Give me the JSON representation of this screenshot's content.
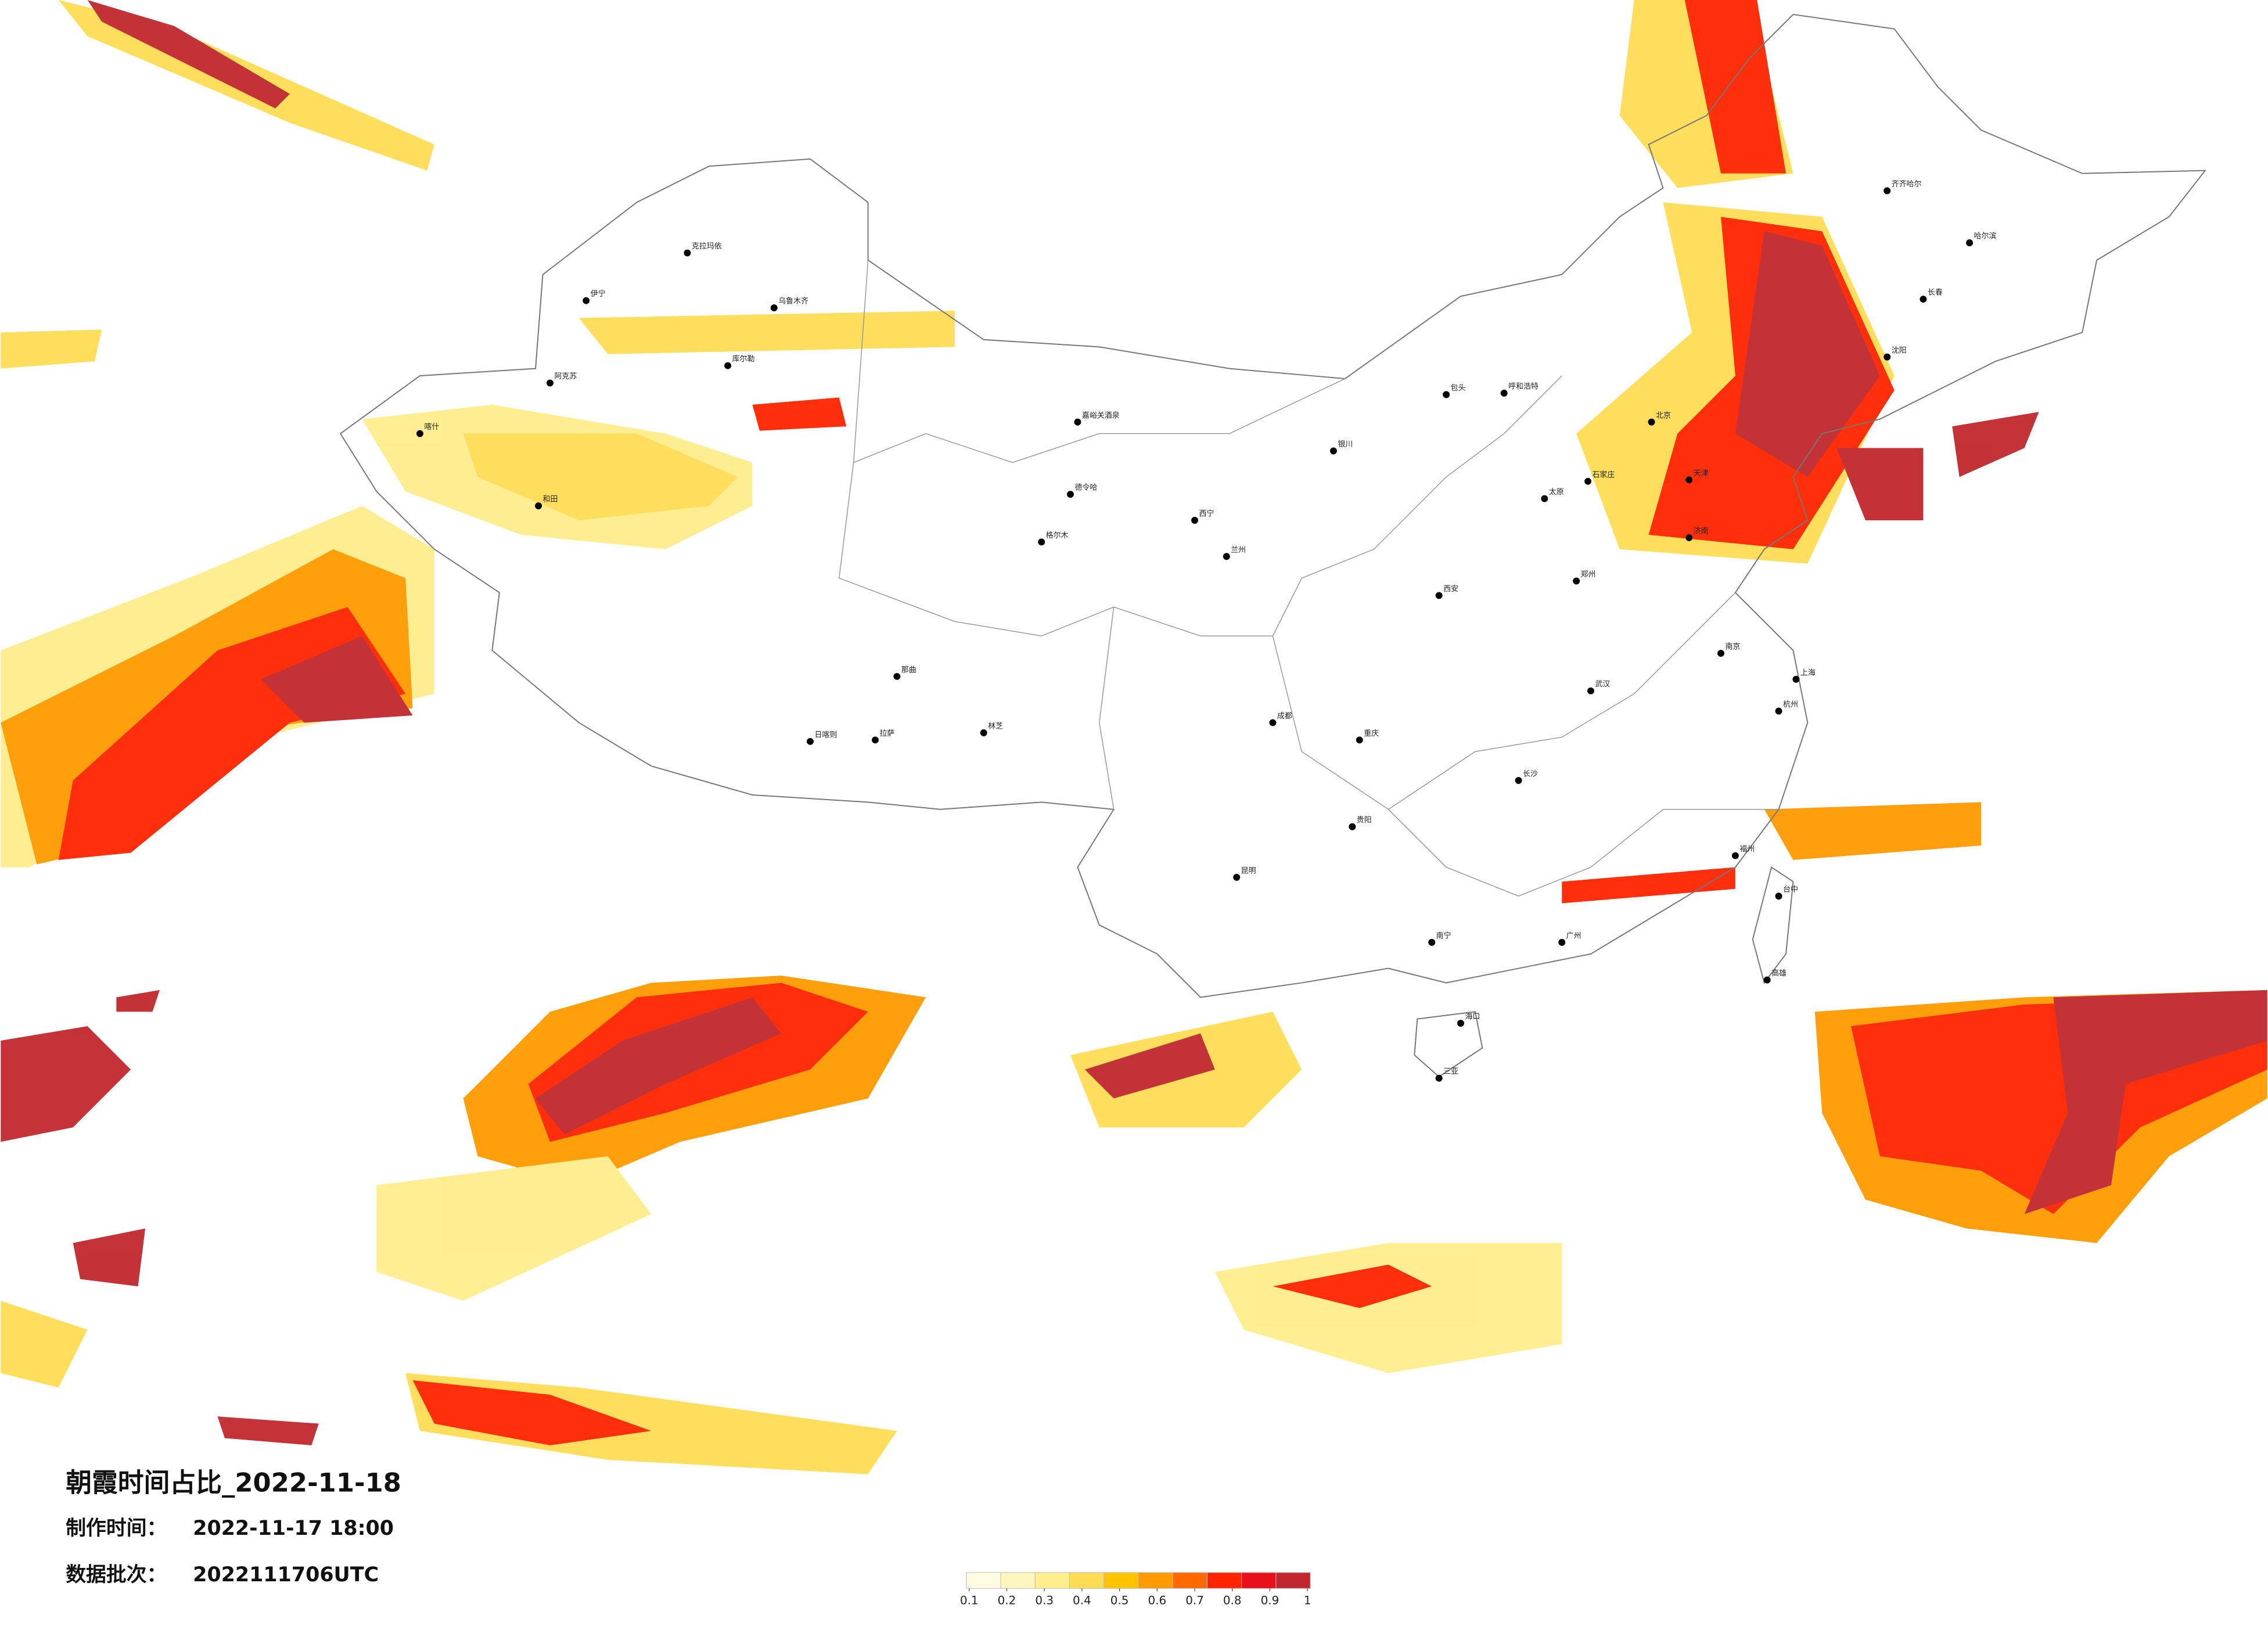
{
  "header": {
    "title": "朝霞时间占比_2022-11-18",
    "made_label": "制作时间：",
    "made_time": "2022-11-17 18:00",
    "batch_label": "数据批次：",
    "batch": "2022111706UTC"
  },
  "colorbar": {
    "ticks": [
      0.1,
      0.2,
      0.3,
      0.4,
      0.5,
      0.6,
      0.7,
      0.8,
      0.9,
      1
    ],
    "colors": [
      "#fffbe3",
      "#fff5bf",
      "#ffee8c",
      "#ffdc55",
      "#ffc300",
      "#ff9a00",
      "#ff6a00",
      "#ff2400",
      "#e8101a",
      "#c0282d"
    ]
  },
  "cities": [
    "克拉玛依",
    "伊宁",
    "阿克苏",
    "喀什",
    "和田",
    "库尔勒",
    "乌鲁木齐",
    "嘉峪关酒泉",
    "德令哈",
    "格尔木",
    "西宁",
    "兰州",
    "日喀则",
    "拉萨",
    "那曲",
    "林芝",
    "银川",
    "呼和浩特",
    "包头",
    "北京",
    "天津",
    "石家庄",
    "太原",
    "济南",
    "郑州",
    "西安",
    "成都",
    "重庆",
    "武汉",
    "长沙",
    "贵阳",
    "昆明",
    "南宁",
    "广州",
    "海口",
    "福州",
    "杭州",
    "南京",
    "上海",
    "沈阳",
    "长春",
    "哈尔滨",
    "齐齐哈尔",
    "台中",
    "高雄",
    "三亚"
  ]
}
